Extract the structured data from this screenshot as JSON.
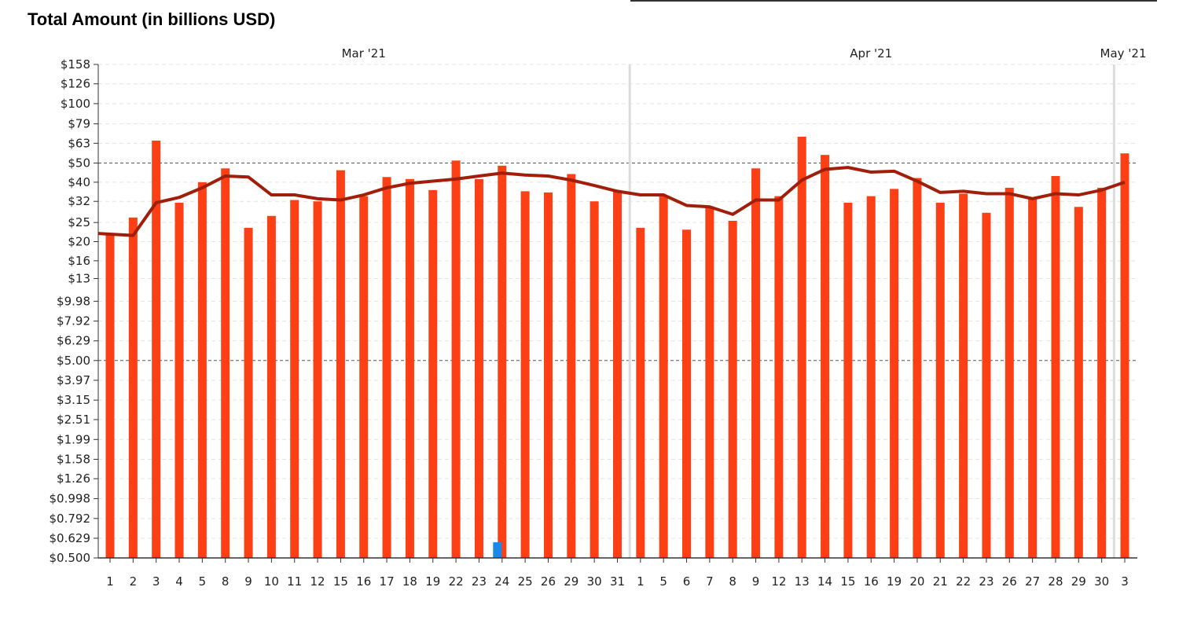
{
  "chart_title": "Total Amount (in billions USD)",
  "colors": {
    "bar": "#fc3f14",
    "bar_highlight": "#1e88e5",
    "line": "#a01e0a",
    "grid": "#e4e4e4",
    "ref_line": "#555555",
    "month_divider": "#dcdcdc",
    "axis": "#333333"
  },
  "chart_data": {
    "type": "bar",
    "y_scale": "log",
    "ylim": [
      0.5,
      158
    ],
    "title": "Total Amount (in billions USD)",
    "y_ticks": [
      {
        "value": 158,
        "label": "$158"
      },
      {
        "value": 126,
        "label": "$126"
      },
      {
        "value": 100,
        "label": "$100"
      },
      {
        "value": 79,
        "label": "$79"
      },
      {
        "value": 63,
        "label": "$63"
      },
      {
        "value": 50,
        "label": "$50"
      },
      {
        "value": 40,
        "label": "$40"
      },
      {
        "value": 32,
        "label": "$32"
      },
      {
        "value": 25,
        "label": "$25"
      },
      {
        "value": 20,
        "label": "$20"
      },
      {
        "value": 16,
        "label": "$16"
      },
      {
        "value": 13,
        "label": "$13"
      },
      {
        "value": 9.98,
        "label": "$9.98"
      },
      {
        "value": 7.92,
        "label": "$7.92"
      },
      {
        "value": 6.29,
        "label": "$6.29"
      },
      {
        "value": 5.0,
        "label": "$5.00"
      },
      {
        "value": 3.97,
        "label": "$3.97"
      },
      {
        "value": 3.15,
        "label": "$3.15"
      },
      {
        "value": 2.51,
        "label": "$2.51"
      },
      {
        "value": 1.99,
        "label": "$1.99"
      },
      {
        "value": 1.58,
        "label": "$1.58"
      },
      {
        "value": 1.26,
        "label": "$1.26"
      },
      {
        "value": 0.998,
        "label": "$0.998"
      },
      {
        "value": 0.792,
        "label": "$0.792"
      },
      {
        "value": 0.629,
        "label": "$0.629"
      },
      {
        "value": 0.5,
        "label": "$0.500"
      }
    ],
    "reference_lines": [
      50,
      5.0
    ],
    "months": [
      {
        "label": "Mar '21",
        "start_index": 0,
        "end_index": 22
      },
      {
        "label": "Apr '21",
        "start_index": 23,
        "end_index": 43
      },
      {
        "label": "May '21",
        "start_index": 44,
        "end_index": 44
      }
    ],
    "categories": [
      "1",
      "2",
      "3",
      "4",
      "5",
      "8",
      "9",
      "10",
      "11",
      "12",
      "15",
      "16",
      "17",
      "18",
      "19",
      "22",
      "23",
      "24",
      "25",
      "26",
      "29",
      "30",
      "31",
      "1",
      "5",
      "6",
      "7",
      "8",
      "9",
      "12",
      "13",
      "14",
      "15",
      "16",
      "19",
      "20",
      "21",
      "22",
      "23",
      "26",
      "27",
      "28",
      "29",
      "30",
      "3"
    ],
    "series": [
      {
        "type": "bar",
        "values": [
          22,
          26.5,
          65,
          31.5,
          40,
          47,
          23.5,
          27,
          32.5,
          32,
          46,
          34,
          42.5,
          41.5,
          36.5,
          51.5,
          41.5,
          48.5,
          36,
          35.5,
          44,
          32,
          36,
          23.5,
          34,
          23,
          30,
          25.5,
          47,
          34,
          68,
          55,
          31.5,
          34,
          37,
          42,
          31.5,
          35,
          28,
          37.5,
          33,
          43,
          30,
          37.5,
          56
        ]
      },
      {
        "type": "line",
        "values": [
          22,
          21.5,
          31.5,
          33.5,
          37.5,
          43,
          42.5,
          34.5,
          34.5,
          33,
          32.5,
          34.5,
          37.5,
          39.5,
          40.5,
          41.5,
          43,
          44.5,
          43.5,
          43,
          41,
          38.5,
          36,
          34.5,
          34.5,
          30.5,
          30,
          27.5,
          32.5,
          32.5,
          41,
          46.5,
          47.5,
          45,
          45.5,
          40.5,
          35.5,
          36,
          35,
          35,
          33,
          35,
          34.5,
          36.5,
          40
        ]
      },
      {
        "type": "bar",
        "values": [
          {
            "index": 17,
            "value": 0.6
          }
        ]
      }
    ]
  }
}
